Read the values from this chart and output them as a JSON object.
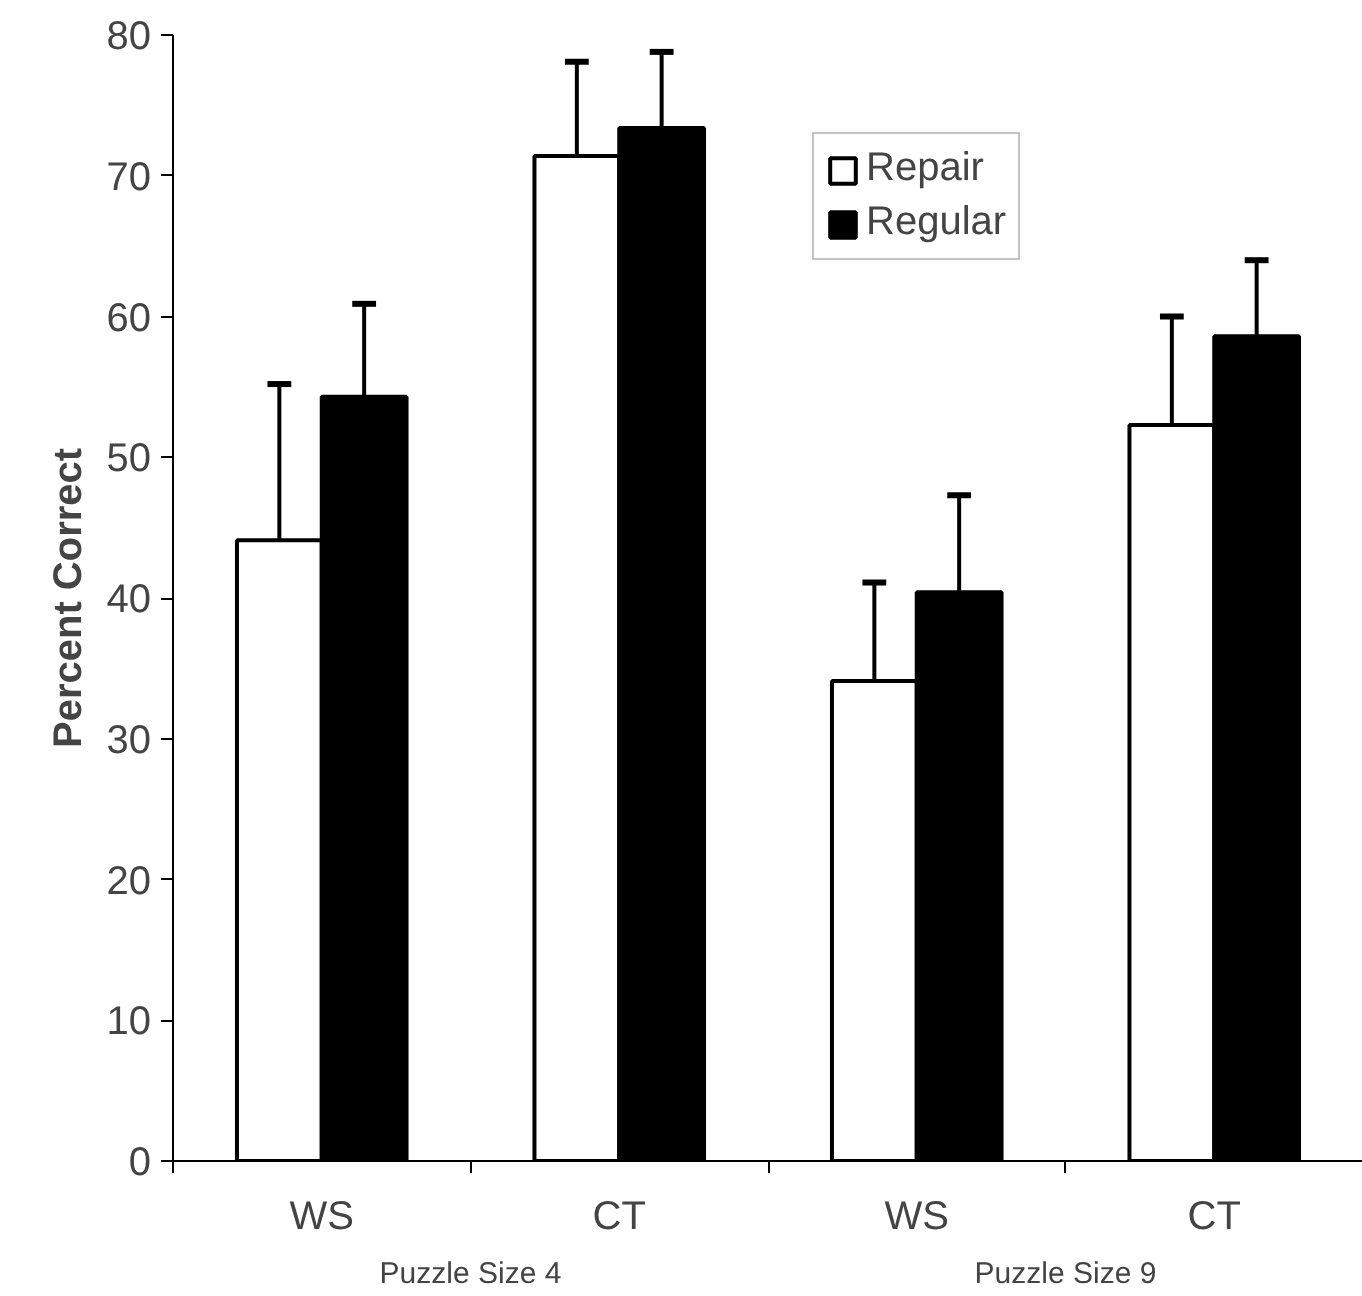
{
  "chart_data": {
    "type": "bar",
    "ylabel": "Percent Correct",
    "categories": [
      "WS",
      "CT",
      "WS",
      "CT"
    ],
    "series": [
      {
        "name": "Repair",
        "color": "#ffffff",
        "values": [
          44.1,
          71.4,
          34.1,
          52.3
        ],
        "errors": [
          [
            44.1,
            55.2
          ],
          [
            71.4,
            78.1
          ],
          [
            34.1,
            41.1
          ],
          [
            52.3,
            60.0
          ]
        ]
      },
      {
        "name": "Regular",
        "color": "#000000",
        "values": [
          54.3,
          73.4,
          40.4,
          58.6
        ],
        "errors": [
          [
            54.3,
            60.9
          ],
          [
            73.4,
            78.8
          ],
          [
            40.4,
            47.3
          ],
          [
            58.6,
            64.0
          ]
        ]
      }
    ],
    "ylim": [
      0,
      80
    ],
    "yticks": [
      0,
      10,
      20,
      30,
      40,
      50,
      60,
      70,
      80
    ],
    "annotations": [
      "Puzzle Size 4",
      "Puzzle Size 9"
    ],
    "legend": "top",
    "grid": false
  }
}
